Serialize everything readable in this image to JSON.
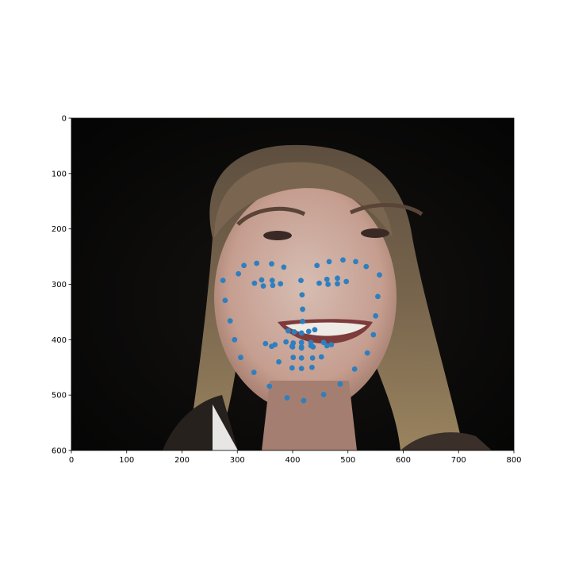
{
  "chart_data": {
    "type": "scatter",
    "title": "",
    "xlabel": "",
    "ylabel": "",
    "xlim": [
      0,
      800
    ],
    "ylim": [
      600,
      0
    ],
    "y_axis_inverted": true,
    "grid": false,
    "legend": "none",
    "x_ticks": [
      "0",
      "100",
      "200",
      "300",
      "400",
      "500",
      "600",
      "700",
      "800"
    ],
    "y_ticks": [
      "0",
      "100",
      "200",
      "300",
      "400",
      "500",
      "600"
    ],
    "background_image": "face-photo",
    "marker_color": "#2f7fbf",
    "series": [
      {
        "points": [
          [
            274,
            293
          ],
          [
            278,
            329
          ],
          [
            287,
            366
          ],
          [
            295,
            400
          ],
          [
            306,
            432
          ],
          [
            330,
            459
          ],
          [
            358,
            484
          ],
          [
            390,
            505
          ],
          [
            420,
            510
          ],
          [
            456,
            499
          ],
          [
            486,
            480
          ],
          [
            512,
            453
          ],
          [
            535,
            424
          ],
          [
            546,
            391
          ],
          [
            550,
            357
          ],
          [
            554,
            322
          ],
          [
            557,
            283
          ],
          [
            302,
            281
          ],
          [
            312,
            266
          ],
          [
            335,
            262
          ],
          [
            362,
            263
          ],
          [
            384,
            269
          ],
          [
            444,
            266
          ],
          [
            466,
            259
          ],
          [
            491,
            256
          ],
          [
            514,
            259
          ],
          [
            533,
            268
          ],
          [
            415,
            293
          ],
          [
            417,
            319
          ],
          [
            418,
            345
          ],
          [
            418,
            367
          ],
          [
            392,
            384
          ],
          [
            403,
            386
          ],
          [
            416,
            388
          ],
          [
            429,
            385
          ],
          [
            440,
            382
          ],
          [
            331,
            298
          ],
          [
            344,
            292
          ],
          [
            363,
            293
          ],
          [
            378,
            299
          ],
          [
            364,
            302
          ],
          [
            347,
            303
          ],
          [
            448,
            298
          ],
          [
            462,
            291
          ],
          [
            481,
            289
          ],
          [
            497,
            295
          ],
          [
            481,
            299
          ],
          [
            464,
            300
          ],
          [
            351,
            407
          ],
          [
            368,
            409
          ],
          [
            388,
            404
          ],
          [
            401,
            406
          ],
          [
            416,
            405
          ],
          [
            433,
            405
          ],
          [
            456,
            405
          ],
          [
            470,
            409
          ],
          [
            452,
            431
          ],
          [
            435,
            450
          ],
          [
            416,
            452
          ],
          [
            399,
            451
          ],
          [
            375,
            440
          ],
          [
            362,
            412
          ],
          [
            399,
            412
          ],
          [
            416,
            413
          ],
          [
            433,
            411
          ],
          [
            462,
            411
          ],
          [
            437,
            413
          ],
          [
            416,
            415
          ],
          [
            400,
            413
          ],
          [
            401,
            432
          ],
          [
            416,
            433
          ],
          [
            436,
            433
          ]
        ]
      }
    ]
  }
}
